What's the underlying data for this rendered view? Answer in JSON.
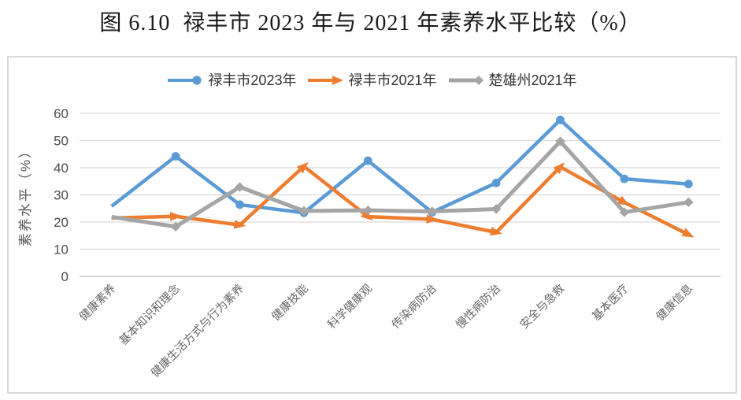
{
  "figure": {
    "title": "图 6.10  禄丰市 2023 年与 2021 年素养水平比较（%）"
  },
  "chart_data": {
    "type": "line",
    "title": "图 6.10  禄丰市 2023 年与 2021 年素养水平比较（%）",
    "categories": [
      "健康素养",
      "基本知识和理念",
      "健康生活方式与行为素养",
      "健康技能",
      "科学健康观",
      "传染病防治",
      "慢性病防治",
      "安全与急救",
      "基本医疗",
      "健康信息"
    ],
    "series": [
      {
        "name": "禄丰市2023年",
        "color": "#5B9BD5",
        "marker": "circle",
        "line_width": 4.5,
        "values": [
          25.8,
          44.2,
          26.4,
          23.4,
          42.6,
          23.6,
          34.4,
          57.6,
          35.9,
          34.0
        ]
      },
      {
        "name": "禄丰市2021年",
        "color": "#ED7D31",
        "marker": "arrow",
        "line_width": 4.5,
        "values": [
          21.5,
          22.1,
          18.9,
          40.5,
          22.0,
          21.0,
          16.2,
          40.3,
          27.2,
          15.4
        ]
      },
      {
        "name": "楚雄州2021年",
        "color": "#A5A5A5",
        "marker": "diamond",
        "line_width": 5,
        "values": [
          21.9,
          18.3,
          32.9,
          24.1,
          24.3,
          23.9,
          24.8,
          49.7,
          23.6,
          27.3
        ]
      }
    ],
    "xlabel": "",
    "ylabel": "素养水平（%）",
    "ylim": [
      0,
      60
    ],
    "yticks": [
      0,
      10,
      20,
      30,
      40,
      50,
      60
    ],
    "grid": true,
    "legend_position": "top",
    "colors": {
      "gridline": "#d9d9d9",
      "axis_line": "#bfbfbf",
      "tick_label": "#4d4d4d",
      "category_label": "#666666",
      "axis_title": "#555555",
      "border": "#d9d9d9"
    }
  }
}
